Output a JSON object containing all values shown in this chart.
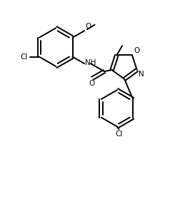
{
  "background_color": "#ffffff",
  "line_color": "#000000",
  "line_width": 1.4,
  "font_size": 7.5,
  "figsize": [
    2.59,
    2.86
  ],
  "dpi": 100,
  "xlim": [
    0,
    10
  ],
  "ylim": [
    0,
    11
  ]
}
